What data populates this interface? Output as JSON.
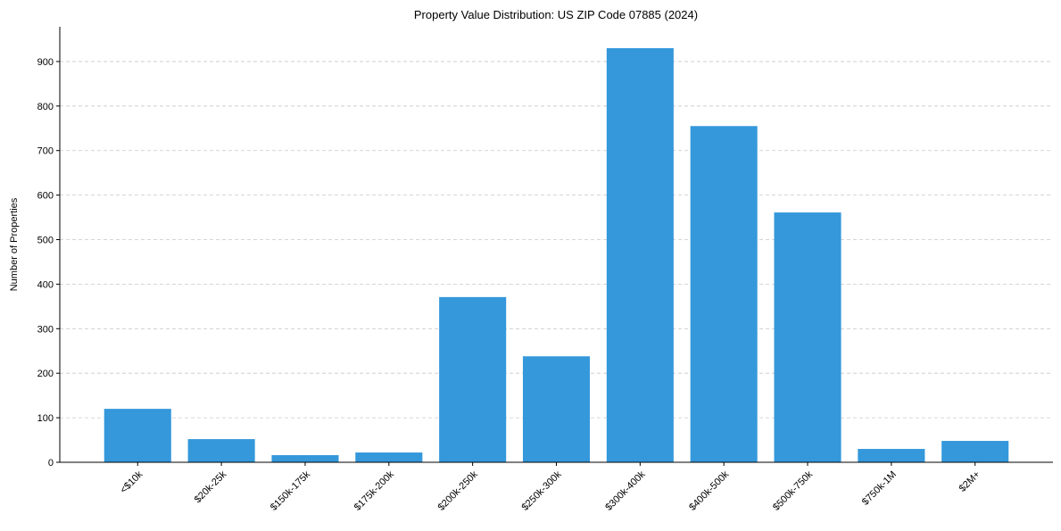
{
  "chart_data": {
    "type": "bar",
    "title": "Property Value Distribution: US ZIP Code 07885 (2024)",
    "xlabel": "",
    "ylabel": "Number of Properties",
    "categories": [
      "<$10k",
      "$20k-25k",
      "$150k-175k",
      "$175k-200k",
      "$200k-250k",
      "$250k-300k",
      "$300k-400k",
      "$400k-500k",
      "$500k-750k",
      "$750k-1M",
      "$2M+"
    ],
    "values": [
      120,
      52,
      16,
      22,
      371,
      238,
      930,
      755,
      561,
      30,
      48
    ],
    "ylim": [
      0,
      978
    ],
    "yticks": [
      0,
      100,
      200,
      300,
      400,
      500,
      600,
      700,
      800,
      900
    ],
    "grid": "y-dashed",
    "bar_color": "#3498db"
  }
}
